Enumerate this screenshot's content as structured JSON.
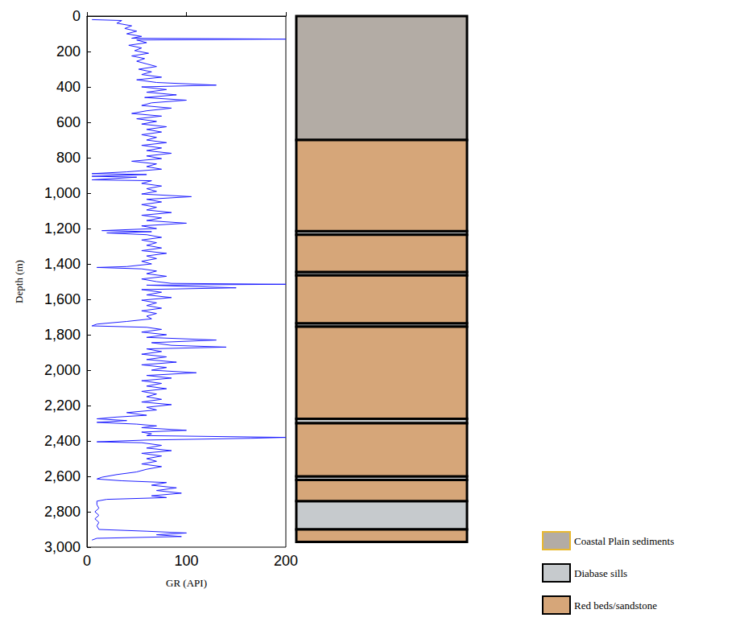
{
  "chart_data": {
    "type": "well_log",
    "x_label": "GR (API)",
    "y_label": "Depth (m)",
    "xlim": [
      0,
      200
    ],
    "xticks": [
      0,
      100,
      200
    ],
    "ylim": [
      0,
      3000
    ],
    "yticks": [
      0,
      200,
      400,
      600,
      800,
      1000,
      1200,
      1400,
      1600,
      1800,
      2000,
      2200,
      2400,
      2600,
      2800,
      3000
    ],
    "grid": false,
    "color": "#1f1fff",
    "depth": [
      20,
      25,
      40,
      55,
      70,
      85,
      100,
      115,
      125,
      130,
      135,
      150,
      165,
      180,
      195,
      210,
      225,
      240,
      255,
      270,
      285,
      300,
      315,
      330,
      345,
      360,
      375,
      390,
      400,
      415,
      430,
      445,
      460,
      475,
      490,
      505,
      520,
      535,
      550,
      565,
      580,
      595,
      610,
      625,
      640,
      655,
      670,
      685,
      700,
      715,
      730,
      745,
      760,
      775,
      790,
      805,
      820,
      835,
      850,
      865,
      880,
      890,
      895,
      905,
      910,
      925,
      930,
      945,
      960,
      975,
      990,
      1005,
      1020,
      1035,
      1050,
      1065,
      1080,
      1095,
      1110,
      1125,
      1140,
      1155,
      1170,
      1185,
      1200,
      1212,
      1218,
      1225,
      1235,
      1250,
      1265,
      1280,
      1295,
      1310,
      1325,
      1340,
      1355,
      1370,
      1385,
      1400,
      1415,
      1420,
      1428,
      1440,
      1455,
      1470,
      1485,
      1500,
      1510,
      1515,
      1520,
      1535,
      1545,
      1560,
      1575,
      1590,
      1605,
      1620,
      1635,
      1650,
      1665,
      1680,
      1695,
      1710,
      1725,
      1740,
      1750,
      1758,
      1770,
      1785,
      1800,
      1815,
      1830,
      1845,
      1860,
      1870,
      1880,
      1895,
      1910,
      1925,
      1940,
      1955,
      1970,
      1985,
      2000,
      2015,
      2030,
      2045,
      2060,
      2075,
      2090,
      2105,
      2120,
      2135,
      2150,
      2165,
      2180,
      2195,
      2210,
      2225,
      2240,
      2255,
      2265,
      2275,
      2285,
      2295,
      2305,
      2315,
      2325,
      2340,
      2350,
      2360,
      2370,
      2380,
      2385,
      2395,
      2405,
      2410,
      2425,
      2440,
      2455,
      2470,
      2485,
      2500,
      2515,
      2530,
      2545,
      2560,
      2575,
      2590,
      2605,
      2615,
      2625,
      2635,
      2650,
      2665,
      2680,
      2695,
      2710,
      2720,
      2730,
      2740,
      2760,
      2780,
      2800,
      2820,
      2840,
      2860,
      2880,
      2900,
      2910,
      2920,
      2930,
      2940,
      2950,
      2960
    ],
    "values": [
      5,
      35,
      30,
      45,
      38,
      50,
      40,
      55,
      45,
      200,
      50,
      60,
      42,
      55,
      48,
      62,
      45,
      58,
      50,
      60,
      70,
      52,
      65,
      55,
      75,
      50,
      70,
      130,
      55,
      80,
      60,
      90,
      58,
      100,
      65,
      55,
      85,
      60,
      45,
      75,
      50,
      70,
      55,
      80,
      60,
      75,
      55,
      70,
      60,
      80,
      55,
      75,
      60,
      85,
      60,
      75,
      45,
      70,
      60,
      75,
      40,
      5,
      60,
      5,
      50,
      5,
      65,
      55,
      75,
      60,
      70,
      55,
      105,
      60,
      75,
      55,
      70,
      60,
      85,
      55,
      75,
      60,
      100,
      55,
      70,
      15,
      65,
      20,
      60,
      75,
      55,
      70,
      60,
      75,
      55,
      80,
      60,
      70,
      55,
      65,
      40,
      10,
      55,
      70,
      60,
      80,
      55,
      70,
      85,
      200,
      60,
      150,
      55,
      75,
      60,
      85,
      55,
      70,
      60,
      75,
      55,
      70,
      60,
      65,
      40,
      10,
      5,
      60,
      75,
      55,
      80,
      60,
      130,
      65,
      85,
      140,
      60,
      75,
      55,
      80,
      60,
      90,
      55,
      80,
      65,
      110,
      60,
      85,
      55,
      75,
      60,
      80,
      55,
      70,
      60,
      75,
      55,
      85,
      60,
      70,
      40,
      60,
      30,
      10,
      40,
      10,
      50,
      70,
      55,
      100,
      55,
      65,
      60,
      200,
      165,
      60,
      10,
      55,
      75,
      60,
      85,
      55,
      75,
      60,
      70,
      55,
      75,
      60,
      50,
      30,
      15,
      10,
      35,
      80,
      65,
      90,
      70,
      95,
      65,
      80,
      20,
      10,
      10,
      12,
      8,
      12,
      8,
      12,
      10,
      12,
      60,
      100,
      70,
      95,
      10,
      5
    ],
    "lithology": {
      "units": [
        {
          "name": "Coastal Plain sediments",
          "color": "#b3aca5",
          "border_color": "#e8b830"
        },
        {
          "name": "Diabase sills",
          "color": "#c6cacd",
          "border_color": "#000000"
        },
        {
          "name": "Red beds/sandstone",
          "color": "#d6a679",
          "border_color": "#000000"
        }
      ],
      "intervals": [
        {
          "top": 0,
          "bottom": 700,
          "unit": "Coastal Plain sediments"
        },
        {
          "top": 700,
          "bottom": 1215,
          "unit": "Red beds/sandstone"
        },
        {
          "top": 1215,
          "bottom": 1235,
          "unit": "Diabase sills"
        },
        {
          "top": 1235,
          "bottom": 1445,
          "unit": "Red beds/sandstone"
        },
        {
          "top": 1445,
          "bottom": 1465,
          "unit": "Diabase sills"
        },
        {
          "top": 1465,
          "bottom": 1735,
          "unit": "Red beds/sandstone"
        },
        {
          "top": 1735,
          "bottom": 1755,
          "unit": "Diabase sills"
        },
        {
          "top": 1755,
          "bottom": 2275,
          "unit": "Red beds/sandstone"
        },
        {
          "top": 2275,
          "bottom": 2300,
          "unit": "Diabase sills"
        },
        {
          "top": 2300,
          "bottom": 2600,
          "unit": "Red beds/sandstone"
        },
        {
          "top": 2600,
          "bottom": 2620,
          "unit": "Diabase sills"
        },
        {
          "top": 2620,
          "bottom": 2740,
          "unit": "Red beds/sandstone"
        },
        {
          "top": 2740,
          "bottom": 2900,
          "unit": "Diabase sills"
        },
        {
          "top": 2900,
          "bottom": 2970,
          "unit": "Red beds/sandstone"
        }
      ]
    }
  }
}
